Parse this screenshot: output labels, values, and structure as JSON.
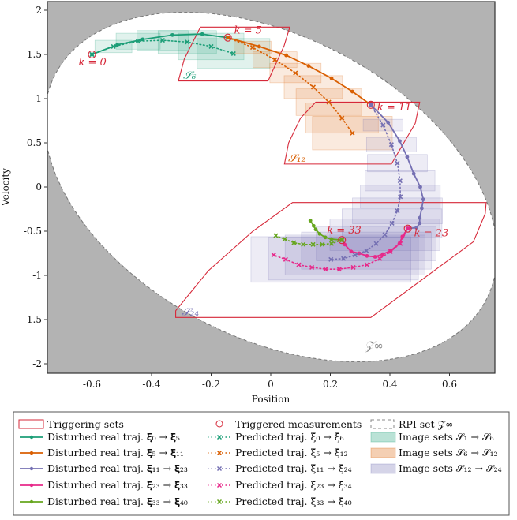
{
  "chart_data": {
    "type": "line",
    "xlabel": "Position",
    "ylabel": "Velocity",
    "xlim": [
      -0.75,
      0.75
    ],
    "ylim": [
      -2.1,
      2.1
    ],
    "xticks": [
      "-0.6",
      "-0.4",
      "-0.2",
      "0",
      "0.2",
      "0.4",
      "0.6"
    ],
    "xtick_values": [
      -0.6,
      -0.4,
      -0.2,
      0,
      0.2,
      0.4,
      0.6
    ],
    "yticks": [
      "2",
      "1.5",
      "1",
      "0.5",
      "0",
      "-0.5",
      "-1",
      "-1.5",
      "-2"
    ],
    "ytick_values": [
      2,
      1.5,
      1,
      0.5,
      0,
      -0.5,
      -1,
      -1.5,
      -2
    ],
    "grid": false,
    "legend_placement": "below",
    "background_color": "#b3b3b3",
    "trigger_color": "#d62839",
    "rpi_set": {
      "label": "𝒵∞",
      "semi_axis_x": 0.76,
      "coupling": -0.75,
      "semi_axis_y": 1.83
    },
    "series": [
      {
        "name": "Disturbed real traj. 𝛏₀ → 𝛏₅",
        "color": "#1b9e77",
        "style": "solid",
        "x": [
          -0.6,
          -0.515,
          -0.43,
          -0.33,
          -0.23,
          -0.144
        ],
        "y": [
          1.5,
          1.61,
          1.67,
          1.72,
          1.73,
          1.69
        ]
      },
      {
        "name": "Disturbed real traj. 𝛏₅ → 𝛏₁₁",
        "color": "#d95f02",
        "style": "solid",
        "x": [
          -0.144,
          -0.039,
          0.052,
          0.127,
          0.204,
          0.274,
          0.336
        ],
        "y": [
          1.69,
          1.59,
          1.49,
          1.37,
          1.23,
          1.08,
          0.93
        ]
      },
      {
        "name": "Disturbed real traj. 𝛏₁₁ → 𝛏₂₃",
        "color": "#7570b3",
        "style": "solid",
        "x": [
          0.336,
          0.394,
          0.433,
          0.458,
          0.48,
          0.502,
          0.512,
          0.507,
          0.5,
          0.5,
          0.489,
          0.46
        ],
        "y": [
          0.93,
          0.73,
          0.52,
          0.34,
          0.15,
          0.0,
          -0.14,
          -0.24,
          -0.35,
          -0.41,
          -0.46,
          -0.47
        ]
      },
      {
        "name": "Disturbed real traj. 𝛏₂₃ → 𝛏₃₃",
        "color": "#e7298a",
        "style": "solid",
        "x": [
          0.46,
          0.442,
          0.432,
          0.403,
          0.376,
          0.35,
          0.323,
          0.297,
          0.27,
          0.248,
          0.239
        ],
        "y": [
          -0.47,
          -0.56,
          -0.64,
          -0.72,
          -0.76,
          -0.79,
          -0.78,
          -0.75,
          -0.73,
          -0.65,
          -0.6
        ]
      },
      {
        "name": "Disturbed real traj. 𝛏₃₃ → 𝛏₄₀",
        "color": "#66a61e",
        "style": "solid",
        "x": [
          0.239,
          0.204,
          0.183,
          0.164,
          0.151,
          0.144,
          0.133
        ],
        "y": [
          -0.6,
          -0.59,
          -0.57,
          -0.53,
          -0.48,
          -0.44,
          -0.38
        ]
      },
      {
        "name": "Predicted traj. ξ̄₀ → ξ̄₆",
        "color": "#1b9e77",
        "style": "dotted",
        "x": [
          -0.6,
          -0.528,
          -0.445,
          -0.363,
          -0.28,
          -0.2,
          -0.125
        ],
        "y": [
          1.5,
          1.59,
          1.65,
          1.66,
          1.64,
          1.59,
          1.51
        ]
      },
      {
        "name": "Predicted traj. ξ̄₅ → ξ̄₁₂",
        "color": "#d95f02",
        "style": "dotted",
        "x": [
          -0.144,
          -0.061,
          0.014,
          0.083,
          0.143,
          0.195,
          0.239,
          0.274
        ],
        "y": [
          1.69,
          1.58,
          1.44,
          1.29,
          1.13,
          0.96,
          0.78,
          0.61
        ]
      },
      {
        "name": "Predicted traj. ξ̄₁₁ → ξ̄₂₄",
        "color": "#7570b3",
        "style": "dotted",
        "x": [
          0.336,
          0.377,
          0.405,
          0.425,
          0.434,
          0.435,
          0.425,
          0.407,
          0.383,
          0.354,
          0.321,
          0.283,
          0.244,
          0.202
        ],
        "y": [
          0.93,
          0.7,
          0.48,
          0.27,
          0.07,
          -0.11,
          -0.27,
          -0.41,
          -0.54,
          -0.64,
          -0.72,
          -0.77,
          -0.81,
          -0.82
        ]
      },
      {
        "name": "Predicted traj. ξ̄₂₃ → ξ̄₃₄",
        "color": "#e7298a",
        "style": "dotted",
        "x": [
          0.46,
          0.435,
          0.402,
          0.366,
          0.323,
          0.277,
          0.23,
          0.184,
          0.138,
          0.094,
          0.05,
          0.01
        ],
        "y": [
          -0.47,
          -0.64,
          -0.73,
          -0.81,
          -0.88,
          -0.91,
          -0.93,
          -0.93,
          -0.91,
          -0.88,
          -0.82,
          -0.77
        ]
      },
      {
        "name": "Predicted traj. ξ̄₃₃ → ξ̄₄₀",
        "color": "#66a61e",
        "style": "dotted",
        "x": [
          0.239,
          0.204,
          0.173,
          0.142,
          0.109,
          0.078,
          0.047,
          0.017
        ],
        "y": [
          -0.6,
          -0.64,
          -0.65,
          -0.65,
          -0.65,
          -0.63,
          -0.59,
          -0.55
        ]
      }
    ],
    "image_sets": [
      {
        "name": "Image sets 𝒮₁ → 𝒮₆",
        "color": "#1b9e77",
        "from_series": 5
      },
      {
        "name": "Image sets 𝒮₆ → 𝒮₁₂",
        "color": "#d95f02",
        "from_series": 6
      },
      {
        "name": "Image sets 𝒮₁₂ → 𝒮₂₄",
        "color": "#7570b3",
        "from_series": 7
      }
    ],
    "triggering_sets": [
      {
        "label": "𝒮₆",
        "label_color": "#1b9e77",
        "vertices": [
          [
            -0.236,
            1.81
          ],
          [
            0.064,
            1.81
          ],
          [
            0.045,
            1.6
          ],
          [
            -0.009,
            1.2
          ],
          [
            -0.31,
            1.2
          ],
          [
            -0.29,
            1.45
          ],
          [
            -0.26,
            1.65
          ]
        ]
      },
      {
        "label": "𝒮₁₂",
        "label_color": "#d95f02",
        "vertices": [
          [
            0.151,
            0.96
          ],
          [
            0.5,
            0.96
          ],
          [
            0.485,
            0.72
          ],
          [
            0.405,
            0.26
          ],
          [
            0.046,
            0.26
          ],
          [
            0.06,
            0.5
          ],
          [
            0.1,
            0.78
          ]
        ]
      },
      {
        "label": "𝒮₂₄",
        "label_color": "#7570b3",
        "vertices": [
          [
            0.073,
            -0.176
          ],
          [
            0.723,
            -0.176
          ],
          [
            0.72,
            -0.3
          ],
          [
            0.68,
            -0.62
          ],
          [
            0.336,
            -1.476
          ],
          [
            -0.319,
            -1.476
          ],
          [
            -0.319,
            -1.4
          ],
          [
            -0.21,
            -0.95
          ],
          [
            -0.06,
            -0.5
          ]
        ]
      }
    ],
    "triggered_measurements": [
      {
        "label": "k = 0",
        "x": -0.6,
        "y": 1.5
      },
      {
        "label": "k = 5",
        "x": -0.144,
        "y": 1.69
      },
      {
        "label": "k = 11",
        "x": 0.336,
        "y": 0.93
      },
      {
        "label": "k = 23",
        "x": 0.46,
        "y": -0.47
      },
      {
        "label": "k = 33",
        "x": 0.239,
        "y": -0.6
      }
    ]
  },
  "legend": {
    "triggering_sets": "Triggering sets",
    "triggered_measurements": "Triggered measurements",
    "rpi_set": "RPI set 𝒵∞",
    "real": [
      "Disturbed real traj. 𝛏₀ → 𝛏₅",
      "Disturbed real traj. 𝛏₅ → 𝛏₁₁",
      "Disturbed real traj. 𝛏₁₁ → 𝛏₂₃",
      "Disturbed real traj. 𝛏₂₃ → 𝛏₃₃",
      "Disturbed real traj. 𝛏₃₃ → 𝛏₄₀"
    ],
    "predicted": [
      "Predicted traj. ξ̄₀ → ξ̄₆",
      "Predicted traj. ξ̄₅ → ξ̄₁₂",
      "Predicted traj. ξ̄₁₁ → ξ̄₂₄",
      "Predicted traj. ξ̄₂₃ → ξ̄₃₄",
      "Predicted traj. ξ̄₃₃ → ξ̄₄₀"
    ],
    "image_sets": [
      "Image sets 𝒮₁ → 𝒮₆",
      "Image sets 𝒮₆ → 𝒮₁₂",
      "Image sets 𝒮₁₂ → 𝒮₂₄"
    ]
  }
}
